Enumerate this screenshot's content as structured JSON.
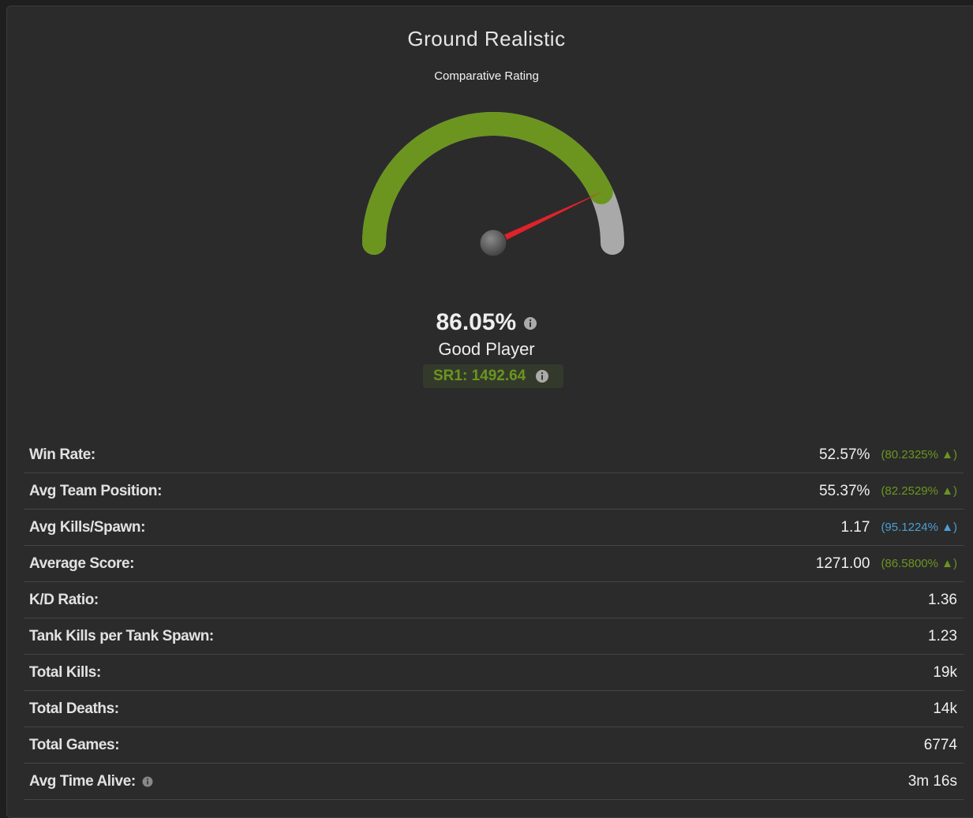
{
  "title": "Ground Realistic",
  "subtitle": "Comparative Rating",
  "rating": {
    "value": 86.05,
    "label": "86.05%",
    "color": "#6b951f",
    "track_color": "#a9a9a9",
    "needle_color": "#e0222a"
  },
  "verdict": "Good Player",
  "sr": "SR1: 1492.64",
  "stats": [
    {
      "label": "Win Rate:",
      "value": "52.57%",
      "percentile": "(80.2325% ▲)",
      "color": "#6b951f"
    },
    {
      "label": "Avg Team Position:",
      "value": "55.37%",
      "percentile": "(82.2529% ▲)",
      "color": "#6b951f"
    },
    {
      "label": "Avg Kills/Spawn:",
      "value": "1.17",
      "percentile": "(95.1224% ▲)",
      "color": "#4a9fd4"
    },
    {
      "label": "Average Score:",
      "value": "1271.00",
      "percentile": "(86.5800% ▲)",
      "color": "#6b951f"
    },
    {
      "label": "K/D Ratio:",
      "value": "1.36"
    },
    {
      "label": "Tank Kills per Tank Spawn:",
      "value": "1.23"
    },
    {
      "label": "Total Kills:",
      "value": "19k"
    },
    {
      "label": "Total Deaths:",
      "value": "14k"
    },
    {
      "label": "Total Games:",
      "value": "6774"
    },
    {
      "label": "Avg Time Alive:",
      "value": "3m 16s",
      "info": true
    }
  ]
}
